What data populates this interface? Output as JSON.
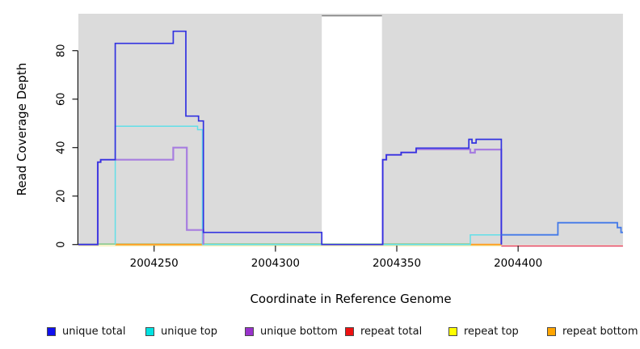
{
  "titles": {
    "x": "Coordinate in Reference Genome",
    "y": "Read Coverage Depth"
  },
  "chart_data": {
    "type": "line",
    "step": true,
    "title": "",
    "xlabel": "Coordinate in Reference Genome",
    "ylabel": "Read Coverage Depth",
    "xlim": [
      2004218.8,
      2004443.2
    ],
    "ylim": [
      0,
      95
    ],
    "x_ticks": [
      2004250,
      2004300,
      2004350,
      2004400
    ],
    "y_ticks": [
      0,
      20,
      40,
      60,
      80
    ],
    "plot_bg": "#dbdbdb",
    "grid": false,
    "gap_region": {
      "x1": 2004319.1,
      "x2": 2004343.9,
      "color": "#ffffff",
      "top_border_color": "#7e7e7e"
    },
    "series": [
      {
        "name": "repeat top",
        "color": "#f2ecae",
        "width": 1.4,
        "paths": [
          [
            [
              2004218.8,
              -0.5
            ],
            [
              2004443.2,
              -0.5
            ]
          ]
        ]
      },
      {
        "name": "repeat total",
        "color": "#e04060",
        "width": 1.5,
        "paths": [
          [
            [
              2004393.1,
              -0.6
            ],
            [
              2004443.2,
              -0.6
            ]
          ]
        ]
      },
      {
        "name": "baseline green",
        "color": "#7cc87c",
        "width": 1.4,
        "paths": [
          [
            [
              2004218.8,
              0.2
            ],
            [
              2004380.3,
              0.2
            ]
          ]
        ]
      },
      {
        "name": "repeat bottom",
        "color": "#ff9d1e",
        "width": 1.8,
        "paths": [
          [
            [
              2004234.0,
              0
            ],
            [
              2004269.9,
              0
            ]
          ],
          [
            [
              2004380.3,
              0
            ],
            [
              2004393.1,
              0
            ]
          ]
        ]
      },
      {
        "name": "unique top",
        "color": "#62dfe8",
        "width": 1.5,
        "paths": [
          [
            [
              2004234.0,
              0
            ],
            [
              2004234.0,
              48.8
            ],
            [
              2004267.9,
              48.8
            ],
            [
              2004267.9,
              47.4
            ],
            [
              2004269.9,
              47.4
            ],
            [
              2004269.9,
              0
            ],
            [
              2004380.3,
              0
            ],
            [
              2004380.3,
              4
            ],
            [
              2004393.1,
              4
            ],
            [
              2004393.1,
              0
            ]
          ]
        ]
      },
      {
        "name": "unique bottom",
        "color": "#a77de0",
        "width": 2.2,
        "paths": [
          [
            [
              2004218.8,
              0
            ],
            [
              2004226.8,
              0
            ],
            [
              2004226.8,
              34
            ],
            [
              2004228.0,
              34
            ],
            [
              2004228.0,
              35
            ],
            [
              2004257.9,
              35
            ],
            [
              2004257.9,
              40
            ],
            [
              2004263.5,
              40
            ],
            [
              2004263.5,
              6
            ],
            [
              2004270.3,
              6
            ],
            [
              2004270.3,
              0
            ]
          ],
          [
            [
              2004344.2,
              0
            ],
            [
              2004344.2,
              35
            ],
            [
              2004345.7,
              35
            ],
            [
              2004345.7,
              37
            ],
            [
              2004351.8,
              37
            ],
            [
              2004351.8,
              38
            ],
            [
              2004358.0,
              38
            ],
            [
              2004358.0,
              39.3
            ],
            [
              2004380.3,
              39.3
            ],
            [
              2004380.3,
              37.9
            ],
            [
              2004382.2,
              37.9
            ],
            [
              2004382.2,
              39.2
            ],
            [
              2004393.1,
              39.2
            ],
            [
              2004393.1,
              0
            ]
          ]
        ]
      },
      {
        "name": "unique total",
        "color": "#3232e0",
        "width": 1.7,
        "paths": [
          [
            [
              2004218.8,
              0
            ],
            [
              2004226.8,
              0
            ],
            [
              2004226.8,
              34
            ],
            [
              2004228.0,
              34
            ],
            [
              2004228.0,
              35
            ],
            [
              2004234.0,
              35
            ],
            [
              2004234.0,
              83
            ],
            [
              2004257.9,
              83
            ],
            [
              2004257.9,
              88
            ],
            [
              2004263.1,
              88
            ],
            [
              2004263.1,
              53
            ],
            [
              2004268.3,
              53
            ],
            [
              2004268.3,
              51
            ],
            [
              2004270.3,
              51
            ],
            [
              2004270.3,
              5
            ],
            [
              2004319.1,
              5
            ],
            [
              2004319.1,
              0
            ],
            [
              2004344.2,
              0
            ],
            [
              2004344.2,
              35
            ],
            [
              2004345.7,
              35
            ],
            [
              2004345.7,
              37
            ],
            [
              2004351.8,
              37
            ],
            [
              2004351.8,
              38
            ],
            [
              2004358.0,
              38
            ],
            [
              2004358.0,
              39.8
            ],
            [
              2004379.7,
              39.8
            ],
            [
              2004379.7,
              43.4
            ],
            [
              2004381.0,
              43.4
            ],
            [
              2004381.0,
              41.9
            ],
            [
              2004382.7,
              41.9
            ],
            [
              2004382.7,
              43.4
            ],
            [
              2004393.1,
              43.4
            ],
            [
              2004393.1,
              0
            ]
          ]
        ]
      },
      {
        "name": "unique total low right",
        "color": "#4379e8",
        "width": 1.8,
        "paths": [
          [
            [
              2004393.1,
              4
            ],
            [
              2004416.4,
              4
            ],
            [
              2004416.4,
              9
            ],
            [
              2004440.9,
              9
            ],
            [
              2004440.9,
              7
            ],
            [
              2004442.4,
              7
            ],
            [
              2004442.4,
              5
            ],
            [
              2004443.2,
              5
            ]
          ]
        ]
      }
    ]
  },
  "legend": {
    "items": [
      {
        "label": "unique total",
        "color": "#1010ee"
      },
      {
        "label": "unique top",
        "color": "#00e2e2"
      },
      {
        "label": "unique bottom",
        "color": "#9932cc"
      },
      {
        "label": "repeat total",
        "color": "#ee1111"
      },
      {
        "label": "repeat top",
        "color": "#ffff00"
      },
      {
        "label": "repeat bottom",
        "color": "#ffa500"
      }
    ]
  }
}
